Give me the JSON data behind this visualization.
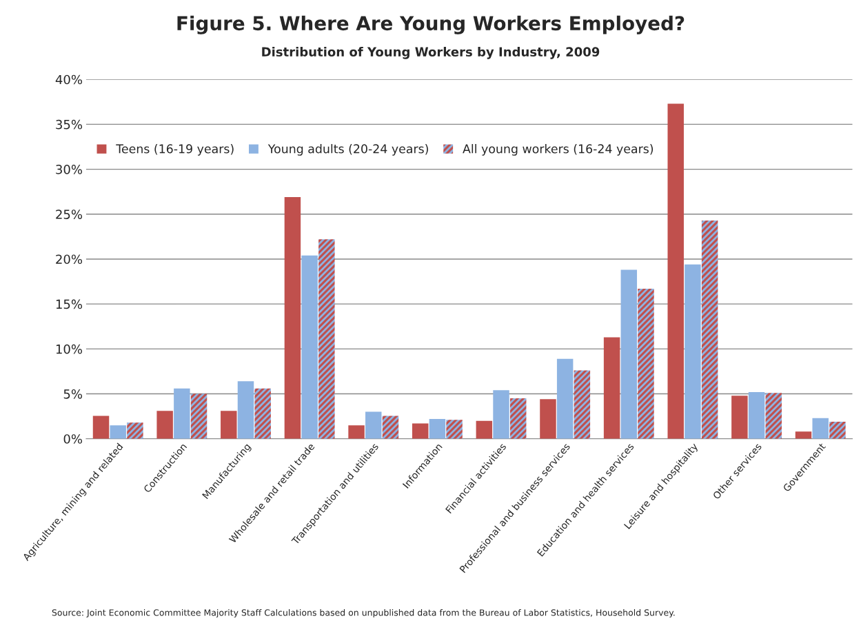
{
  "chart_data": {
    "type": "bar",
    "title": "Figure 5. Where Are Young Workers Employed?",
    "subtitle": "Distribution of Young Workers by Industry, 2009",
    "categories": [
      "Agriculture, mining and related",
      "Construction",
      "Manufacturing",
      "Wholesale and retail trade",
      "Transportation and utilities",
      "Information",
      "Financial activities",
      "Professional and business services",
      "Education and health services",
      "Leisure and hospitality",
      "Other services",
      "Government"
    ],
    "series": [
      {
        "name": "Teens (16-19 years)",
        "color": "#c0504d",
        "values": [
          2.55,
          3.1,
          3.1,
          26.9,
          1.5,
          1.7,
          2.0,
          4.4,
          11.3,
          37.3,
          4.8,
          0.8
        ]
      },
      {
        "name": "Young adults (20-24 years)",
        "color": "#8db3e2",
        "values": [
          1.5,
          5.6,
          6.4,
          20.4,
          3.0,
          2.2,
          5.4,
          8.9,
          18.8,
          19.4,
          5.2,
          2.3
        ]
      },
      {
        "name": "All young workers (16-24 years)",
        "color": "#c0504d",
        "values": [
          1.8,
          5.0,
          5.6,
          22.2,
          2.55,
          2.1,
          4.5,
          7.6,
          16.7,
          24.3,
          5.1,
          1.9
        ]
      }
    ],
    "ylim": [
      0,
      40
    ],
    "yticks": [
      {
        "value": 0,
        "label": "0%"
      },
      {
        "value": 5,
        "label": "5%"
      },
      {
        "value": 10,
        "label": "10%"
      },
      {
        "value": 15,
        "label": "15%"
      },
      {
        "value": 20,
        "label": "20%"
      },
      {
        "value": 25,
        "label": "25%"
      },
      {
        "value": 30,
        "label": "30%"
      },
      {
        "value": 35,
        "label": "35%"
      },
      {
        "value": 40,
        "label": "40%"
      }
    ],
    "grid": "y",
    "legend": "top",
    "annotations": [
      "Source: Joint Economic Committee Majority Staff Calculations based on unpublished data from the Bureau of Labor Statistics, Household Survey."
    ]
  }
}
